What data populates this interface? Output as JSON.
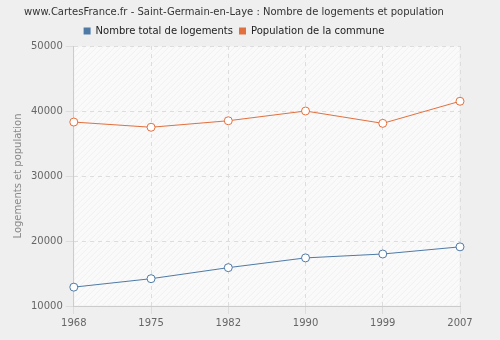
{
  "chart_data": {
    "type": "line",
    "title": "www.CartesFrance.fr - Saint-Germain-en-Laye : Nombre de logements et population",
    "y_label": "Logements et population",
    "categories": [
      "1968",
      "1975",
      "1982",
      "1990",
      "1999",
      "2007"
    ],
    "series": [
      {
        "name": "Nombre total de logements",
        "color": "#4f7aa6",
        "marker": "circle",
        "values": [
          12900,
          14200,
          15900,
          17400,
          18000,
          19100
        ]
      },
      {
        "name": "Population de la commune",
        "color": "#e2703f",
        "marker": "circle",
        "values": [
          38300,
          37500,
          38500,
          40000,
          38100,
          41500
        ]
      }
    ],
    "ylim": [
      10000,
      50000
    ],
    "yticks": [
      10000,
      20000,
      30000,
      40000,
      50000
    ],
    "grid": true,
    "legend": "top"
  }
}
